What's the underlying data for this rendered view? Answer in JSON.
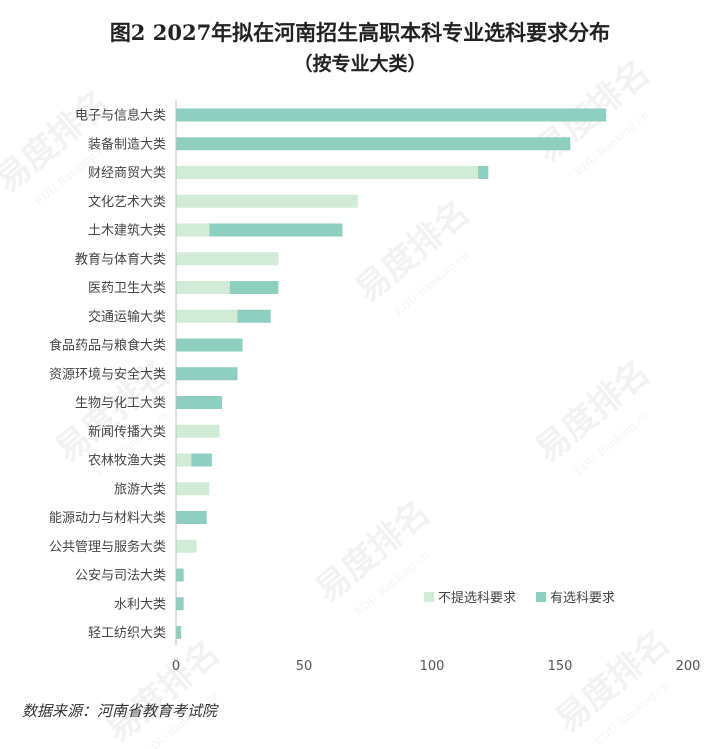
{
  "header": {
    "title": "图2 2027年拟在河南招生高职本科专业选科要求分布",
    "subtitle": "（按专业大类）"
  },
  "footer": {
    "source": "数据来源：河南省教育考试院"
  },
  "watermark": {
    "text_cn": "易度排名",
    "text_en": "EDU Ranking.cn"
  },
  "chart_data": {
    "type": "bar",
    "orientation": "horizontal",
    "stacked": true,
    "categories": [
      "电子与信息大类",
      "装备制造大类",
      "财经商贸大类",
      "文化艺术大类",
      "土木建筑大类",
      "教育与体育大类",
      "医药卫生大类",
      "交通运输大类",
      "食品药品与粮食大类",
      "资源环境与安全大类",
      "生物与化工大类",
      "新闻传播大类",
      "农林牧渔大类",
      "旅游大类",
      "能源动力与材料大类",
      "公共管理与服务大类",
      "公安与司法大类",
      "水利大类",
      "轻工纺织大类"
    ],
    "series": [
      {
        "name": "不提选科要求",
        "color": "#d1ebd7",
        "values": [
          0,
          0,
          118,
          71,
          13,
          40,
          21,
          24,
          0,
          0,
          0,
          17,
          6,
          13,
          0,
          8,
          0,
          0,
          0
        ]
      },
      {
        "name": "有选科要求",
        "color": "#8ecfc0",
        "values": [
          168,
          154,
          4,
          0,
          52,
          0,
          19,
          13,
          26,
          24,
          18,
          0,
          8,
          0,
          12,
          0,
          3,
          3,
          2
        ]
      }
    ],
    "xlim": [
      0,
      200
    ],
    "xticks": [
      0,
      50,
      100,
      150,
      200
    ],
    "grid": false,
    "legend_position": "bottom-right"
  }
}
